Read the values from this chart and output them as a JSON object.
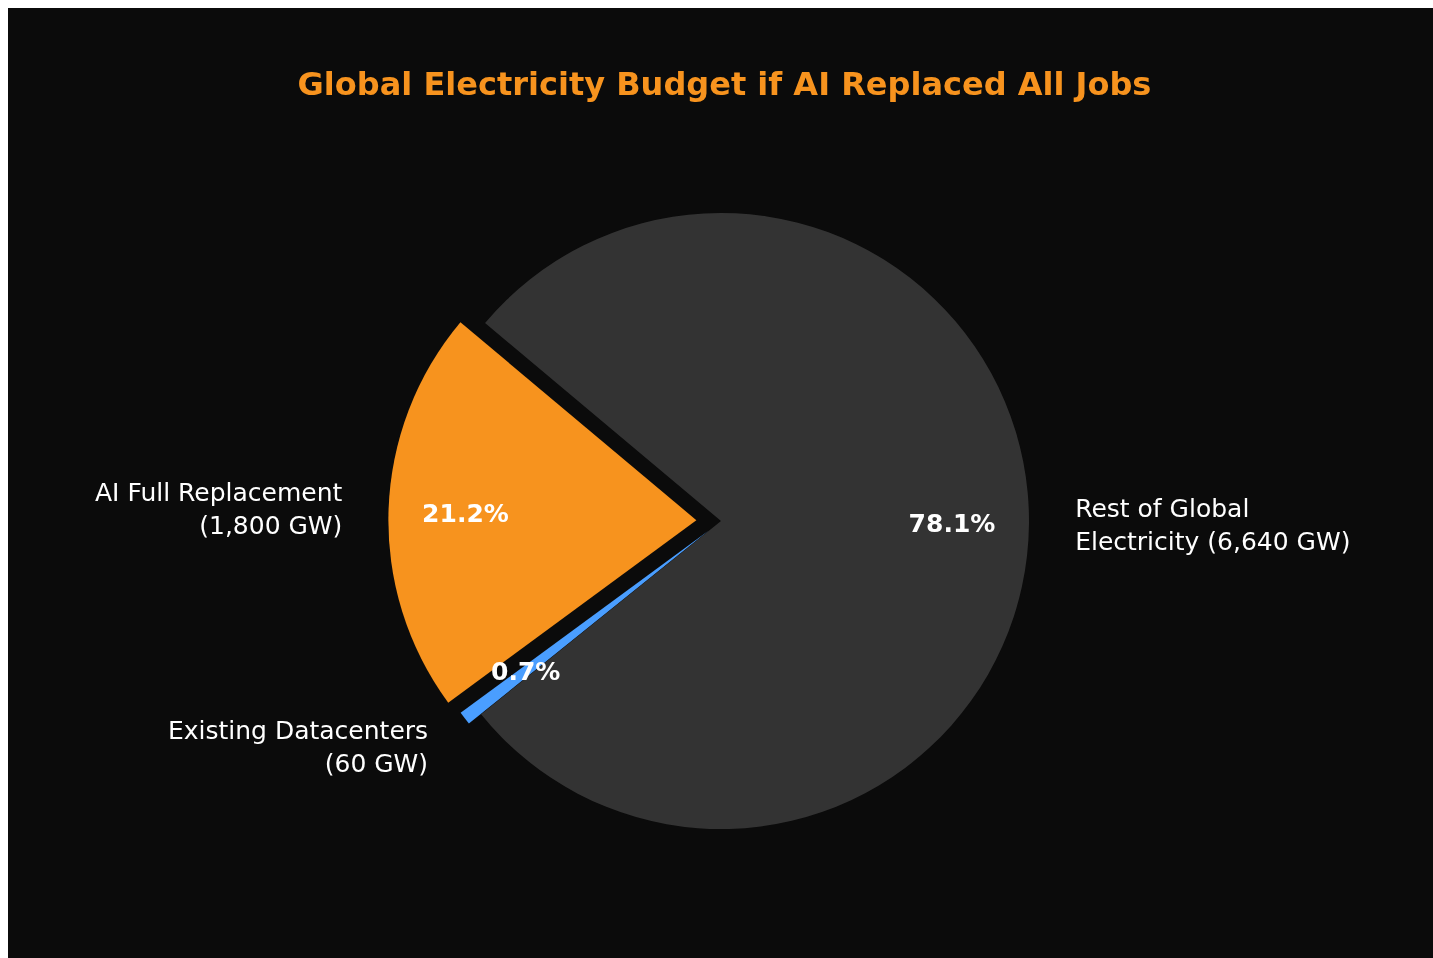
{
  "chart_data": {
    "type": "pie",
    "title": "Global Electricity Budget if AI Replaced All Jobs",
    "categories": [
      "AI Full Replacement\n(1,800 GW)",
      "Existing Datacenters\n(60 GW)",
      "Rest of Global\nElectricity (6,640 GW)"
    ],
    "values": [
      21.2,
      0.7,
      78.1
    ],
    "colors": [
      "#f7931e",
      "#4a9eff",
      "#333333"
    ],
    "value_labels": [
      "21.2%",
      "0.7%",
      "78.1%"
    ]
  }
}
